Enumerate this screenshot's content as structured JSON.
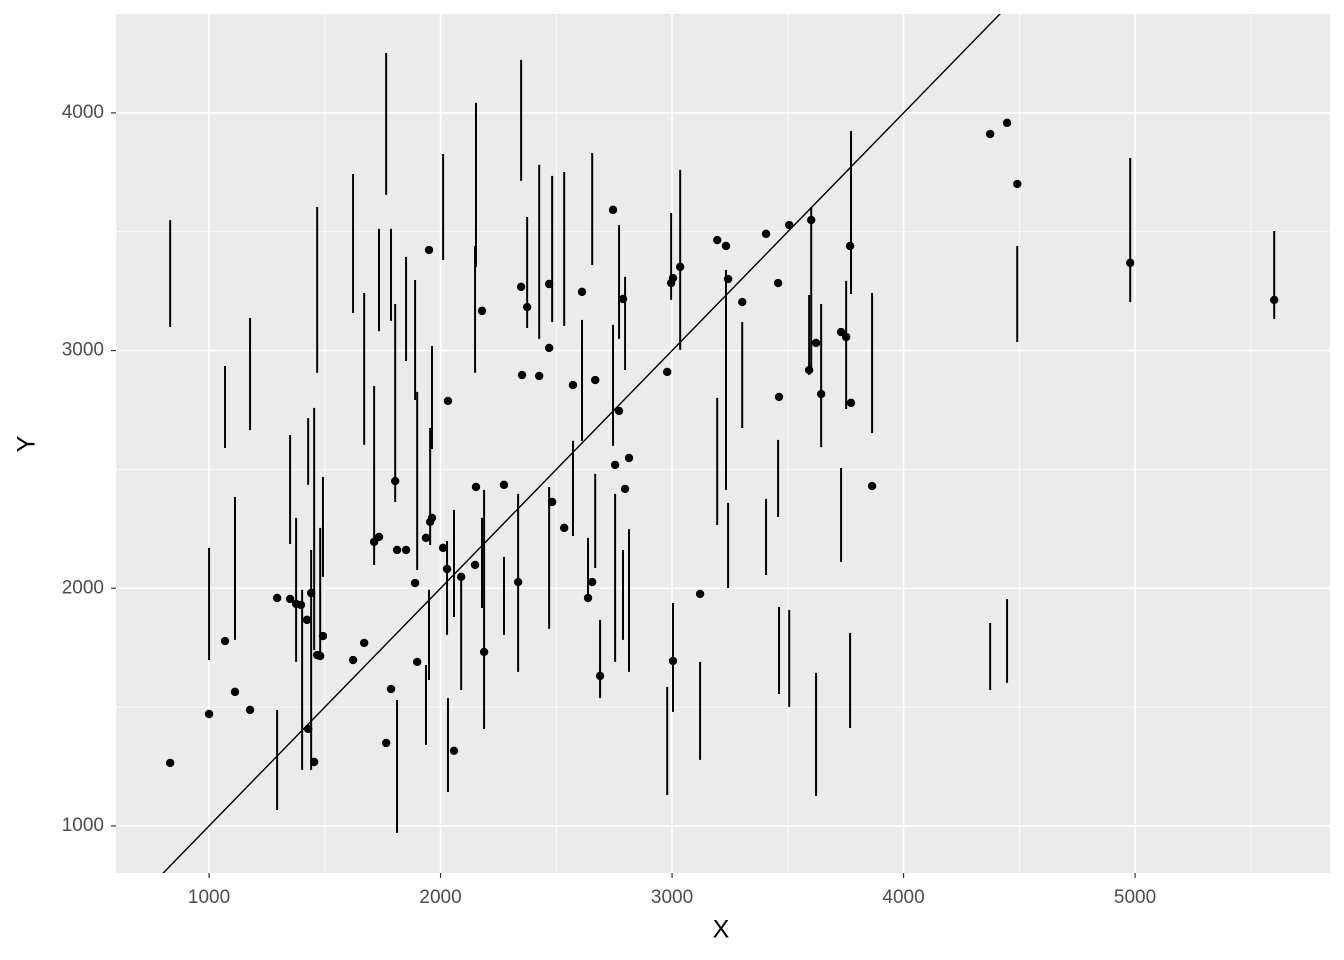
{
  "chart_data": {
    "type": "scatter",
    "x_label": "X",
    "y_label": "Y",
    "xlim": [
      598,
      5842
    ],
    "ylim": [
      802,
      4416
    ],
    "xticks": [
      1000,
      2000,
      3000,
      4000,
      5000
    ],
    "yticks": [
      1000,
      2000,
      3000,
      4000
    ],
    "grid": true,
    "panel_color": "#ebebeb",
    "grid_color": "#ffffff",
    "color": "#000000",
    "points": {
      "x": [
        832,
        1000,
        1069,
        1112,
        1177,
        1294,
        1350,
        1376,
        1397,
        1423,
        1428,
        1441,
        1454,
        1467,
        1480,
        1492,
        1622,
        1670,
        1713,
        1734,
        1765,
        1786,
        1804,
        1812,
        1851,
        1890,
        1899,
        1937,
        1950,
        1955,
        1963,
        2011,
        2028,
        2032,
        2058,
        2089,
        2149,
        2153,
        2179,
        2188,
        2274,
        2335,
        2348,
        2352,
        2374,
        2426,
        2469,
        2469,
        2482,
        2534,
        2572,
        2611,
        2637,
        2655,
        2668,
        2689,
        2745,
        2754,
        2771,
        2788,
        2797,
        2814,
        2979,
        2996,
        3004,
        3004,
        3035,
        3121,
        3195,
        3233,
        3242,
        3303,
        3406,
        3458,
        3462,
        3506,
        3592,
        3601,
        3622,
        3644,
        3730,
        3752,
        3769,
        3773,
        3864,
        4374,
        4447,
        4491,
        4979,
        5601
      ],
      "y": [
        1265,
        1471,
        1778,
        1564,
        1488,
        1959,
        1955,
        1934,
        1930,
        1867,
        1408,
        1980,
        1269,
        1719,
        1715,
        1799,
        1698,
        1770,
        2195,
        2216,
        1349,
        1576,
        2451,
        2161,
        2161,
        2022,
        1690,
        2212,
        3423,
        2279,
        2296,
        2170,
        2081,
        2788,
        1316,
        2048,
        2098,
        2426,
        3167,
        1732,
        2435,
        2026,
        3268,
        2897,
        3183,
        2893,
        3280,
        3011,
        2363,
        2254,
        2855,
        3247,
        1959,
        2026,
        2876,
        1631,
        3592,
        2519,
        2746,
        3217,
        2418,
        2548,
        2910,
        3284,
        3305,
        1694,
        3352,
        1976,
        3465,
        3440,
        3301,
        3204,
        3491,
        3284,
        2805,
        3528,
        2918,
        3549,
        3032,
        2817,
        3078,
        3057,
        3440,
        2780,
        2430,
        3911,
        3958,
        3701,
        3369,
        3213
      ]
    },
    "segments": {
      "x": [
        832,
        1000,
        1069,
        1112,
        1177,
        1294,
        1350,
        1376,
        1402,
        1428,
        1441,
        1454,
        1467,
        1480,
        1492,
        1622,
        1670,
        1713,
        1734,
        1765,
        1786,
        1804,
        1812,
        1851,
        1890,
        1899,
        1937,
        1950,
        1955,
        1963,
        2011,
        2028,
        2032,
        2058,
        2089,
        2149,
        2153,
        2179,
        2188,
        2274,
        2335,
        2348,
        2374,
        2426,
        2469,
        2482,
        2534,
        2572,
        2611,
        2637,
        2655,
        2668,
        2689,
        2745,
        2754,
        2771,
        2788,
        2797,
        2814,
        2979,
        2996,
        3004,
        3035,
        3121,
        3195,
        3233,
        3242,
        3303,
        3406,
        3458,
        3462,
        3506,
        3592,
        3601,
        3622,
        3644,
        3730,
        3752,
        3769,
        3773,
        3864,
        4374,
        4447,
        4491,
        4979,
        5601
      ],
      "ymin": [
        3099,
        1698,
        2590,
        1783,
        2666,
        1067,
        2186,
        1690,
        1236,
        2435,
        1236,
        1740,
        2906,
        1698,
        2048,
        3158,
        2603,
        2098,
        3082,
        3655,
        3125,
        2363,
        971,
        2956,
        2792,
        2077,
        1341,
        1614,
        2182,
        2586,
        3381,
        1804,
        1143,
        1879,
        1572,
        2906,
        3352,
        1917,
        1408,
        1804,
        1648,
        3714,
        3095,
        3049,
        1829,
        3120,
        3104,
        2220,
        2620,
        1951,
        3360,
        2085,
        1538,
        2599,
        1690,
        3049,
        1783,
        2918,
        1648,
        1130,
        3213,
        1480,
        3003,
        1278,
        2266,
        2414,
        2001,
        2674,
        2056,
        2300,
        1555,
        1501,
        2897,
        2918,
        1126,
        2594,
        2111,
        2754,
        1412,
        3238,
        2653,
        1572,
        1602,
        3036,
        3204,
        3133
      ],
      "ymax": [
        3549,
        2170,
        2935,
        2384,
        3137,
        1488,
        2645,
        2296,
        1993,
        2716,
        2161,
        2759,
        3604,
        2254,
        2468,
        3743,
        3242,
        2851,
        3512,
        4252,
        3512,
        3196,
        1530,
        3394,
        3297,
        2826,
        1677,
        1993,
        2674,
        3019,
        3827,
        2199,
        1538,
        2329,
        2039,
        3440,
        4042,
        2296,
        2414,
        2132,
        2397,
        4223,
        3562,
        3781,
        2426,
        3735,
        3751,
        2620,
        3129,
        2212,
        3831,
        2481,
        1867,
        3108,
        2397,
        3528,
        2161,
        3310,
        2249,
        1585,
        3579,
        1938,
        3760,
        1690,
        2801,
        3339,
        2359,
        3120,
        2376,
        2624,
        1921,
        1909,
        3234,
        3604,
        1644,
        3196,
        2506,
        3293,
        1812,
        3924,
        3242,
        1854,
        1955,
        3440,
        3810,
        3503
      ]
    },
    "line": {
      "slope": 1,
      "intercept": 0
    }
  }
}
